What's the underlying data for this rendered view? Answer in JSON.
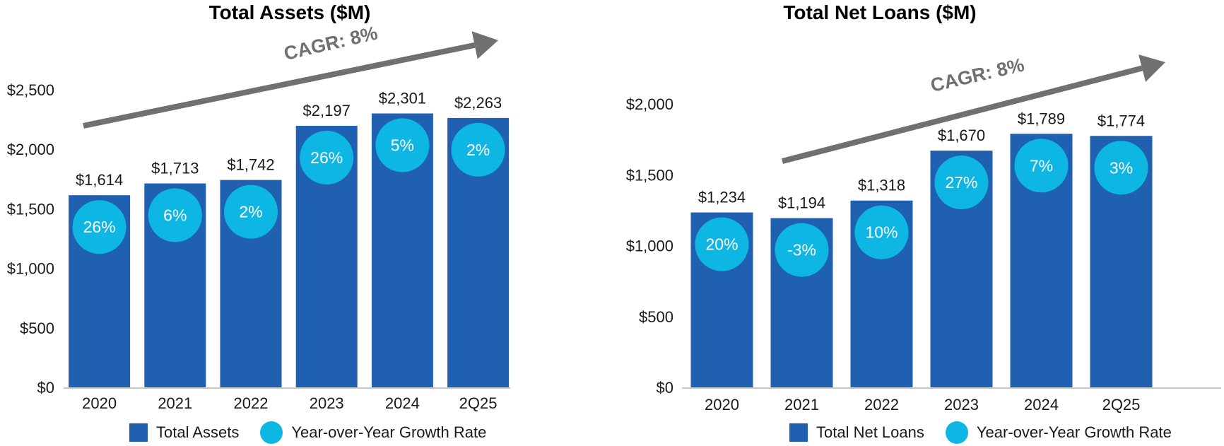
{
  "colors": {
    "bar": "#2060B0",
    "bubble": "#0DB6E3",
    "arrow": "#707070",
    "axis": "#C8C8C8"
  },
  "chart_data": [
    {
      "type": "bar",
      "title": "Total Assets ($M)",
      "categories": [
        "2020",
        "2021",
        "2022",
        "2023",
        "2024",
        "2Q25"
      ],
      "series": [
        {
          "name": "Total Assets",
          "values": [
            1614,
            1713,
            1742,
            2197,
            2301,
            2263
          ],
          "labels": [
            "$1,614",
            "$1,713",
            "$1,742",
            "$2,197",
            "$2,301",
            "$2,263"
          ]
        },
        {
          "name": "Year-over-Year Growth Rate",
          "values": [
            "26%",
            "6%",
            "2%",
            "26%",
            "5%",
            "2%"
          ]
        }
      ],
      "ylim": [
        0,
        2500
      ],
      "yticks": [
        "$0",
        "$500",
        "$1,000",
        "$1,500",
        "$2,000",
        "$2,500"
      ],
      "annotation": "CAGR: 8%",
      "legend": [
        "Total Assets",
        "Year-over-Year Growth Rate"
      ],
      "legend_position": "bottom",
      "grid": false
    },
    {
      "type": "bar",
      "title": "Total Net Loans ($M)",
      "categories": [
        "2020",
        "2021",
        "2022",
        "2023",
        "2024",
        "2Q25"
      ],
      "series": [
        {
          "name": "Total Net Loans",
          "values": [
            1234,
            1194,
            1318,
            1670,
            1789,
            1774
          ],
          "labels": [
            "$1,234",
            "$1,194",
            "$1,318",
            "$1,670",
            "$1,789",
            "$1,774"
          ]
        },
        {
          "name": "Year-over-Year Growth Rate",
          "values": [
            "20%",
            "-3%",
            "10%",
            "27%",
            "7%",
            "3%"
          ]
        }
      ],
      "ylim": [
        0,
        2000
      ],
      "yticks": [
        "$0",
        "$500",
        "$1,000",
        "$1,500",
        "$2,000"
      ],
      "annotation": "CAGR: 8%",
      "legend": [
        "Total Net Loans",
        "Year-over-Year Growth Rate"
      ],
      "legend_position": "bottom",
      "grid": false
    }
  ]
}
